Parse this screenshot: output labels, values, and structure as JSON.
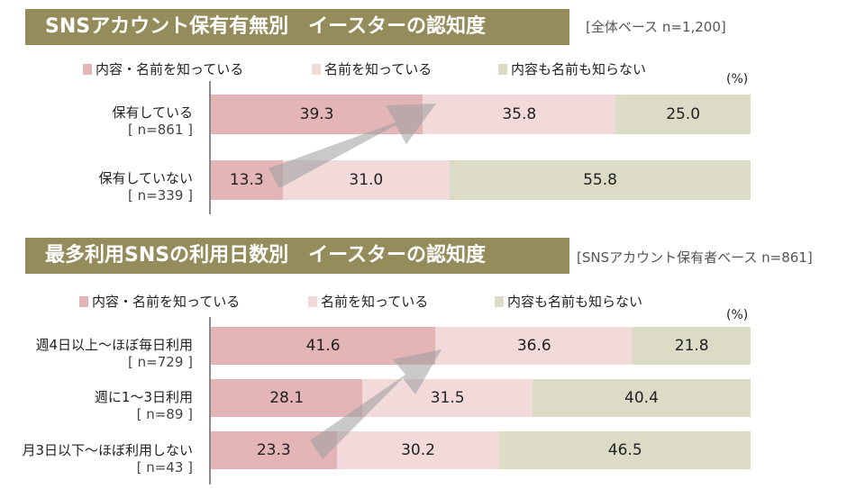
{
  "unit_label": "(%)",
  "legend": {
    "items": [
      {
        "label": "内容・名前を知っている",
        "color": "#e3b5b6"
      },
      {
        "label": "名前を知っている",
        "color": "#f2dadb"
      },
      {
        "label": "内容も名前も知らない",
        "color": "#dcdbc6"
      }
    ]
  },
  "panels": [
    {
      "title": "SNSアカウント保有有無別　イースターの認知度",
      "base_note": "[全体ベース n=1,200]"
    },
    {
      "title": "最多利用SNSの利用日数別　イースターの認知度",
      "base_note": "[SNSアカウント保有者ベース n=861]"
    }
  ],
  "chart_data": [
    {
      "type": "bar",
      "title": "SNSアカウント保有有無別　イースターの認知度",
      "orientation": "horizontal",
      "stacked": "100%",
      "unit": "(%)",
      "categories": [
        "保有している",
        "保有していない"
      ],
      "category_notes": [
        "[ n=861 ]",
        "[ n=339 ]"
      ],
      "series": [
        {
          "name": "内容・名前を知っている",
          "values": [
            39.3,
            13.3
          ]
        },
        {
          "name": "名前を知っている",
          "values": [
            35.8,
            31.0
          ]
        },
        {
          "name": "内容も名前も知らない",
          "values": [
            25.0,
            55.8
          ]
        }
      ],
      "legend_position": "top"
    },
    {
      "type": "bar",
      "title": "最多利用SNSの利用日数別　イースターの認知度",
      "orientation": "horizontal",
      "stacked": "100%",
      "unit": "(%)",
      "categories": [
        "週4日以上～ほぼ毎日利用",
        "週に1～3日利用",
        "月3日以下～ほぼ利用しない"
      ],
      "category_notes": [
        "[ n=729 ]",
        "[ n=89 ]",
        "[ n=43 ]"
      ],
      "series": [
        {
          "name": "内容・名前を知っている",
          "values": [
            41.6,
            28.1,
            23.3
          ]
        },
        {
          "name": "名前を知っている",
          "values": [
            36.6,
            31.5,
            30.2
          ]
        },
        {
          "name": "内容も名前も知らない",
          "values": [
            21.8,
            40.4,
            46.5
          ]
        }
      ],
      "legend_position": "top"
    }
  ]
}
